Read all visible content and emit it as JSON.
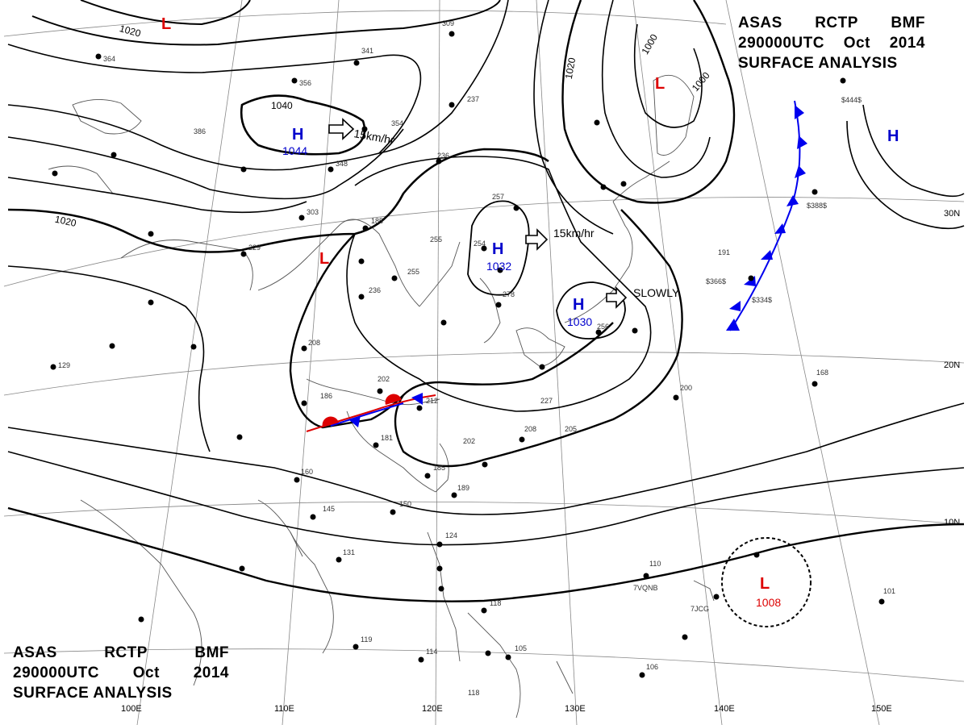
{
  "header": {
    "line1": [
      "ASAS",
      "RCTP",
      "BMF"
    ],
    "line2": [
      "290000UTC",
      "Oct",
      "2014"
    ],
    "line3": "SURFACE ANALYSIS"
  },
  "longitude_labels": [
    "100E",
    "110E",
    "120E",
    "130E",
    "140E",
    "150E"
  ],
  "latitude_labels": [
    "30N",
    "20N",
    "10N"
  ],
  "isobar_labels": [
    "1020",
    "1040",
    "1020",
    "1020",
    "1000",
    "1000"
  ],
  "pressure_systems": [
    {
      "type": "H",
      "value": "1044",
      "color": "#0000cc",
      "motion": "15km/hr"
    },
    {
      "type": "H",
      "value": "1032",
      "color": "#0000cc",
      "motion": "15km/hr"
    },
    {
      "type": "H",
      "value": "1030",
      "color": "#0000cc",
      "motion": "SLOWLY"
    },
    {
      "type": "H",
      "value": "",
      "color": "#0000cc"
    },
    {
      "type": "L",
      "value": "",
      "color": "#dd0000"
    },
    {
      "type": "L",
      "value": "",
      "color": "#dd0000"
    },
    {
      "type": "L",
      "value": "",
      "color": "#dd0000"
    },
    {
      "type": "L",
      "value": "1008",
      "color": "#dd0000"
    }
  ],
  "station_values": [
    "364",
    "356",
    "341",
    "386",
    "354",
    "348",
    "303",
    "237",
    "236",
    "257",
    "255",
    "185",
    "254",
    "229",
    "255",
    "236",
    "278",
    "208",
    "186",
    "202",
    "212",
    "181",
    "256",
    "227",
    "208",
    "205",
    "202",
    "185",
    "189",
    "160",
    "145",
    "131",
    "150",
    "124",
    "118",
    "114",
    "119",
    "106",
    "118",
    "105",
    "191",
    "168",
    "200",
    "101",
    "110",
    "129",
    "309",
    "7VQNB",
    "7JCG",
    "$444$",
    "$388$",
    "$366$",
    "$334$"
  ]
}
